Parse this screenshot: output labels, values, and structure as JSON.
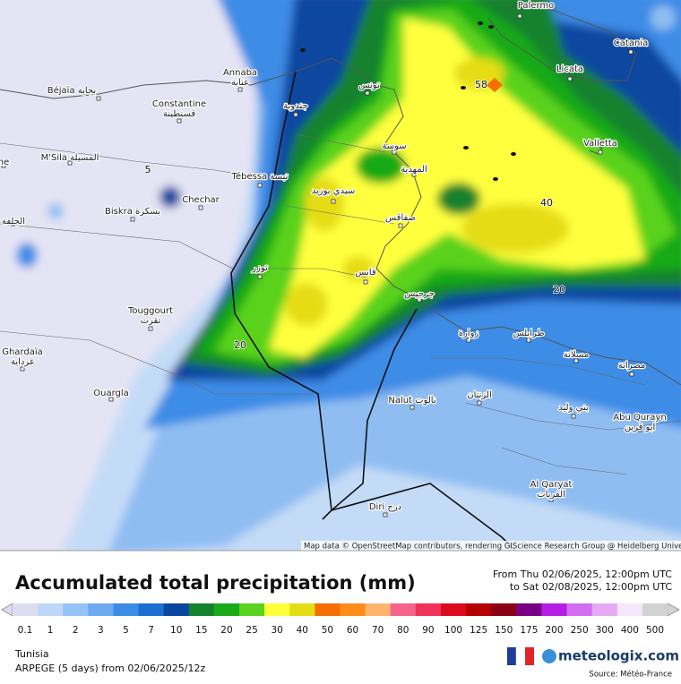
{
  "title": "Accumulated total precipitation (mm)",
  "period": {
    "from": "From Thu 02/06/2025, 12:00pm UTC",
    "to": "to Sat 02/08/2025, 12:00pm UTC"
  },
  "region": "Tunisia",
  "model": "ARPEGE (5 days) from 02/06/2025/12z",
  "brand": "meteologix.com",
  "source": "Source: Météo-France",
  "attribution": "Map data © OpenStreetMap contributors, rendering GIScience Research Group @ Heidelberg University",
  "legend": {
    "levels": [
      {
        "value": 0.1,
        "color": "#dcdcf0"
      },
      {
        "value": 1,
        "color": "#bed6f7"
      },
      {
        "value": 2,
        "color": "#96c3f5"
      },
      {
        "value": 3,
        "color": "#6eaaf0"
      },
      {
        "value": 5,
        "color": "#3c8ce6"
      },
      {
        "value": 7,
        "color": "#1e6ed2"
      },
      {
        "value": 10,
        "color": "#0a46a0"
      },
      {
        "value": 15,
        "color": "#14822d"
      },
      {
        "value": 20,
        "color": "#19aa19"
      },
      {
        "value": 25,
        "color": "#5ad21e"
      },
      {
        "value": 30,
        "color": "#ffff3c"
      },
      {
        "value": 40,
        "color": "#e6dc14"
      },
      {
        "value": 50,
        "color": "#f56e00"
      },
      {
        "value": 60,
        "color": "#ff8c19"
      },
      {
        "value": 70,
        "color": "#ffb46e"
      },
      {
        "value": 80,
        "color": "#f5648c"
      },
      {
        "value": 90,
        "color": "#f0325a"
      },
      {
        "value": 100,
        "color": "#dc0a1e"
      },
      {
        "value": 125,
        "color": "#b40000"
      },
      {
        "value": 150,
        "color": "#8c0014"
      },
      {
        "value": 175,
        "color": "#780082"
      },
      {
        "value": 200,
        "color": "#b41ee6"
      },
      {
        "value": 250,
        "color": "#d26ef0"
      },
      {
        "value": 300,
        "color": "#e6aaf5"
      },
      {
        "value": 400,
        "color": "#f5e6fa"
      },
      {
        "value": 500,
        "color": "#d2d2d2"
      }
    ]
  },
  "contour_labels": [
    58,
    40,
    20,
    20,
    5
  ],
  "cities": [
    {
      "name": "Palermo"
    },
    {
      "name": "Catania"
    },
    {
      "name": "Licata"
    },
    {
      "name": "Valletta"
    },
    {
      "name": "Annaba",
      "local": "عنابة"
    },
    {
      "name": "Béjaïa بجاية"
    },
    {
      "name": "Constantine",
      "local": "قسنطينة"
    },
    {
      "name": "M'Sila المسيلة"
    },
    {
      "name": "Tébessa تبسة"
    },
    {
      "name": "Biskra بسكرة"
    },
    {
      "name": "Chechar"
    },
    {
      "name": "Touggourt",
      "local": "تقرت"
    },
    {
      "name": "Ghardaïa",
      "local": "غرداية"
    },
    {
      "name": "Ouargla"
    },
    {
      "name": "الجلفة"
    },
    {
      "name": "ne"
    },
    {
      "name": "تونس"
    },
    {
      "name": "جندوبة"
    },
    {
      "name": "سوسة"
    },
    {
      "name": "المهدية"
    },
    {
      "name": "سيدي بوزيد"
    },
    {
      "name": "صفاقس"
    },
    {
      "name": "قابس"
    },
    {
      "name": "توزر"
    },
    {
      "name": "جرجيس"
    },
    {
      "name": "زوارة"
    },
    {
      "name": "طرابلس"
    },
    {
      "name": "مسلاتة"
    },
    {
      "name": "مصراتة"
    },
    {
      "name": "Nalut نالوت"
    },
    {
      "name": "الزنتان"
    },
    {
      "name": "بني وليد"
    },
    {
      "name": "Abu Qurayn",
      "local": "ابو قرين"
    },
    {
      "name": "Al Qaryat",
      "local": "القريات"
    },
    {
      "name": "Diri درج"
    }
  ]
}
